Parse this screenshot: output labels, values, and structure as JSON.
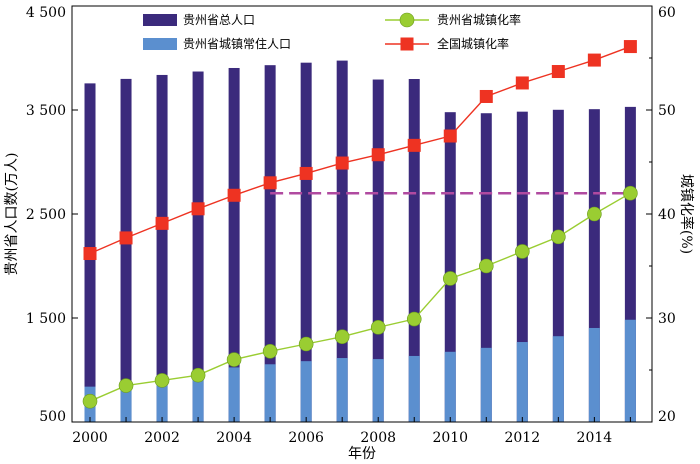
{
  "chart_data": {
    "type": "bar",
    "x": [
      2000,
      2001,
      2002,
      2003,
      2004,
      2005,
      2006,
      2007,
      2008,
      2009,
      2010,
      2011,
      2012,
      2013,
      2014,
      2015
    ],
    "xticks": [
      "2000",
      "2002",
      "2004",
      "2006",
      "2008",
      "2010",
      "2012",
      "2014"
    ],
    "xlabel": "年份",
    "ylabel": "贵州省人口数(万人)",
    "ylabel_right": "城镇化率(%)",
    "ylim": [
      500,
      4500
    ],
    "ylim_right": [
      20,
      60
    ],
    "yticks": [
      "500",
      "1 500",
      "2 500",
      "3 500",
      "4 500"
    ],
    "yticks_right": [
      "20",
      "30",
      "40",
      "50",
      "60"
    ],
    "grid": false,
    "legend_position": "top",
    "series": [
      {
        "name": "贵州省总人口",
        "type": "bar",
        "axis": "left",
        "color": "#3b2a7c",
        "values": [
          3756,
          3799,
          3837,
          3870,
          3904,
          3931,
          3955,
          3975,
          3793,
          3798,
          3479,
          3469,
          3484,
          3502,
          3508,
          3530
        ]
      },
      {
        "name": "贵州省城镇常住人口",
        "type": "bar",
        "axis": "left",
        "color": "#5b8fcf",
        "values": [
          840,
          875,
          910,
          955,
          1025,
          1055,
          1085,
          1115,
          1105,
          1135,
          1175,
          1213,
          1269,
          1325,
          1404,
          1483
        ]
      },
      {
        "name": "贵州省城镇化率",
        "type": "line",
        "axis": "right",
        "color": "#9acd32",
        "marker": "circle",
        "values": [
          22.0,
          23.5,
          24.0,
          24.5,
          26.0,
          26.8,
          27.5,
          28.2,
          29.1,
          29.9,
          33.8,
          35.0,
          36.4,
          37.8,
          40.0,
          42.0
        ]
      },
      {
        "name": "全国城镇化率",
        "type": "line",
        "axis": "right",
        "color": "#ee3322",
        "marker": "square",
        "values": [
          36.2,
          37.7,
          39.1,
          40.5,
          41.8,
          43.0,
          43.9,
          44.9,
          45.7,
          46.6,
          47.5,
          51.3,
          52.6,
          53.7,
          54.8,
          56.1
        ]
      }
    ],
    "annotations": [
      {
        "type": "hline",
        "axis": "right",
        "value": 42.0,
        "from_x": 2005,
        "to_x": 2015,
        "color": "#b04aa0",
        "style": "dashed"
      }
    ]
  }
}
